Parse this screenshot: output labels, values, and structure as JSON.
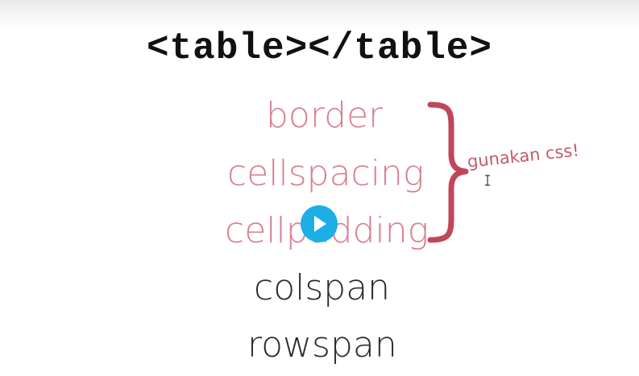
{
  "slide": {
    "title": "<table></table>",
    "items": [
      {
        "label": "border",
        "color": "#d97f8f"
      },
      {
        "label": "cellspacing",
        "color": "#d97f8f"
      },
      {
        "label": "cellpadding",
        "color": "#d97f8f"
      },
      {
        "label": "colspan",
        "color": "#2b2b2b"
      },
      {
        "label": "rowspan",
        "color": "#2b2b2b"
      }
    ],
    "annotation": "gunakan css!",
    "brace_color": "#c0475a"
  },
  "player": {
    "play_icon": "play-icon",
    "accent_color": "#1eaee6"
  }
}
